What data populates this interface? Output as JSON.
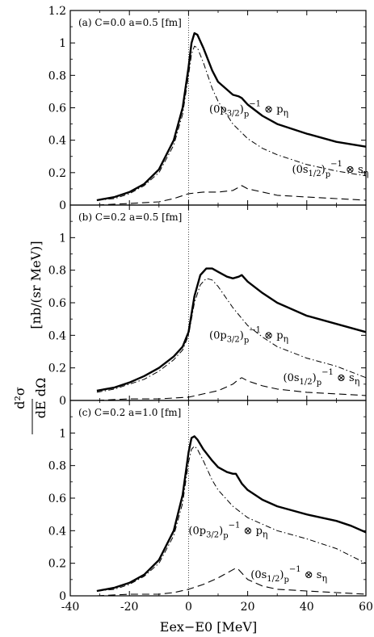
{
  "figure": {
    "ylabel_numerator": "d²σ",
    "ylabel_denominator": "dE dΩ",
    "ylabel_unit": "[nb/(sr MeV)]",
    "xlabel": "Eex−E0 [MeV]"
  },
  "chart_data": [
    {
      "type": "line",
      "panel_label": "(a) C=0.0 a=0.5 [fm]",
      "xlim": [
        -40,
        60
      ],
      "ylim": [
        0,
        1.2
      ],
      "xticks": [
        -40,
        -20,
        0,
        20,
        40,
        60
      ],
      "yticks": [
        0,
        0.2,
        0.4,
        0.6,
        0.8,
        1,
        1.2
      ],
      "ytick_labels": [
        "0",
        "0.2",
        "0.4",
        "0.6",
        "0.8",
        "1",
        "1.2"
      ],
      "xtick_labels": [],
      "annotations": [
        {
          "text": "(0p3/2)p−1 ⊗ pη",
          "x": 7,
          "y": 0.57
        },
        {
          "text": "(0s1/2)p−1 ⊗ sη",
          "x": 35,
          "y": 0.2
        }
      ],
      "series": [
        {
          "style": "solid",
          "x": [
            -31,
            -25,
            -20,
            -15,
            -10,
            -5,
            -2,
            0,
            1,
            2,
            3,
            5,
            8,
            10,
            15,
            17,
            18,
            20,
            25,
            30,
            40,
            50,
            60
          ],
          "y": [
            0.03,
            0.05,
            0.08,
            0.13,
            0.22,
            0.4,
            0.6,
            0.85,
            1.0,
            1.06,
            1.05,
            0.97,
            0.83,
            0.76,
            0.68,
            0.67,
            0.66,
            0.62,
            0.55,
            0.5,
            0.44,
            0.39,
            0.36
          ]
        },
        {
          "style": "dash-dot",
          "x": [
            -31,
            -25,
            -20,
            -15,
            -10,
            -5,
            -2,
            0,
            1,
            2,
            3,
            5,
            8,
            10,
            15,
            20,
            25,
            30,
            40,
            50,
            60
          ],
          "y": [
            0.03,
            0.04,
            0.07,
            0.12,
            0.2,
            0.37,
            0.56,
            0.8,
            0.93,
            0.98,
            0.97,
            0.88,
            0.72,
            0.64,
            0.5,
            0.41,
            0.35,
            0.31,
            0.25,
            0.21,
            0.18
          ]
        },
        {
          "style": "dashed",
          "x": [
            -31,
            -20,
            -10,
            -5,
            0,
            5,
            10,
            15,
            17,
            18,
            20,
            25,
            30,
            40,
            50,
            60
          ],
          "y": [
            0.0,
            0.01,
            0.02,
            0.04,
            0.07,
            0.08,
            0.08,
            0.09,
            0.11,
            0.12,
            0.1,
            0.08,
            0.06,
            0.05,
            0.04,
            0.03
          ]
        }
      ]
    },
    {
      "type": "line",
      "panel_label": "(b) C=0.2 a=0.5 [fm]",
      "xlim": [
        -40,
        60
      ],
      "ylim": [
        0,
        1.2
      ],
      "xticks": [
        -40,
        -20,
        0,
        20,
        40,
        60
      ],
      "yticks": [
        0,
        0.2,
        0.4,
        0.6,
        0.8,
        1
      ],
      "ytick_labels": [
        "0",
        "0.2",
        "0.4",
        "0.6",
        "0.8",
        "1"
      ],
      "xtick_labels": [],
      "annotations": [
        {
          "text": "(0p3/2)p−1 ⊗ pη",
          "x": 7,
          "y": 0.38
        },
        {
          "text": "(0s1/2)p−1 ⊗ sη",
          "x": 32,
          "y": 0.12
        }
      ],
      "series": [
        {
          "style": "solid",
          "x": [
            -31,
            -25,
            -20,
            -15,
            -10,
            -5,
            -2,
            0,
            2,
            4,
            6,
            8,
            10,
            13,
            15,
            17,
            18,
            20,
            25,
            30,
            40,
            50,
            60
          ],
          "y": [
            0.06,
            0.08,
            0.11,
            0.15,
            0.2,
            0.27,
            0.33,
            0.42,
            0.64,
            0.77,
            0.81,
            0.81,
            0.79,
            0.76,
            0.75,
            0.76,
            0.77,
            0.73,
            0.66,
            0.6,
            0.52,
            0.47,
            0.42
          ]
        },
        {
          "style": "dash-dot",
          "x": [
            -31,
            -25,
            -20,
            -15,
            -10,
            -5,
            -2,
            0,
            2,
            4,
            6,
            8,
            10,
            15,
            20,
            25,
            30,
            40,
            50,
            60
          ],
          "y": [
            0.05,
            0.07,
            0.1,
            0.13,
            0.18,
            0.25,
            0.31,
            0.4,
            0.6,
            0.71,
            0.75,
            0.74,
            0.7,
            0.57,
            0.46,
            0.39,
            0.33,
            0.26,
            0.21,
            0.14
          ]
        },
        {
          "style": "dashed",
          "x": [
            -31,
            -20,
            -10,
            0,
            5,
            10,
            15,
            17,
            18,
            20,
            25,
            30,
            40,
            50,
            60
          ],
          "y": [
            0.0,
            0.01,
            0.01,
            0.02,
            0.04,
            0.06,
            0.1,
            0.13,
            0.14,
            0.12,
            0.09,
            0.07,
            0.05,
            0.04,
            0.03
          ]
        }
      ]
    },
    {
      "type": "line",
      "panel_label": "(c) C=0.2 a=1.0 [fm]",
      "xlim": [
        -40,
        60
      ],
      "ylim": [
        0,
        1.2
      ],
      "xticks": [
        -40,
        -20,
        0,
        20,
        40,
        60
      ],
      "yticks": [
        0,
        0.2,
        0.4,
        0.6,
        0.8,
        1
      ],
      "ytick_labels": [
        "0",
        "0.2",
        "0.4",
        "0.6",
        "0.8",
        "1"
      ],
      "xtick_labels": [
        "-40",
        "-20",
        "0",
        "20",
        "40",
        "60"
      ],
      "annotations": [
        {
          "text": "(0p3/2)p−1 ⊗ pη",
          "x": 0,
          "y": 0.38
        },
        {
          "text": "(0s1/2)p−1 ⊗ sη",
          "x": 21,
          "y": 0.11
        }
      ],
      "series": [
        {
          "style": "solid",
          "x": [
            -31,
            -25,
            -20,
            -15,
            -10,
            -5,
            -2,
            0,
            1,
            2,
            3,
            5,
            8,
            10,
            13,
            15,
            16,
            17,
            18,
            20,
            25,
            30,
            40,
            50,
            55,
            60
          ],
          "y": [
            0.03,
            0.05,
            0.08,
            0.13,
            0.22,
            0.4,
            0.62,
            0.88,
            0.97,
            0.98,
            0.96,
            0.9,
            0.83,
            0.79,
            0.76,
            0.75,
            0.75,
            0.72,
            0.69,
            0.65,
            0.59,
            0.55,
            0.5,
            0.46,
            0.43,
            0.39
          ]
        },
        {
          "style": "dash-dot",
          "x": [
            -31,
            -25,
            -20,
            -15,
            -10,
            -5,
            -2,
            0,
            1,
            2,
            3,
            5,
            8,
            10,
            15,
            20,
            25,
            30,
            40,
            50,
            60
          ],
          "y": [
            0.03,
            0.04,
            0.07,
            0.12,
            0.2,
            0.37,
            0.57,
            0.82,
            0.9,
            0.92,
            0.9,
            0.83,
            0.71,
            0.65,
            0.55,
            0.48,
            0.44,
            0.4,
            0.35,
            0.29,
            0.2
          ]
        },
        {
          "style": "dashed",
          "x": [
            -31,
            -20,
            -10,
            -5,
            0,
            5,
            10,
            15,
            16,
            17,
            20,
            25,
            30,
            40,
            50,
            60
          ],
          "y": [
            0.0,
            0.01,
            0.01,
            0.02,
            0.04,
            0.07,
            0.11,
            0.16,
            0.17,
            0.16,
            0.1,
            0.06,
            0.04,
            0.03,
            0.02,
            0.01
          ]
        }
      ]
    }
  ]
}
